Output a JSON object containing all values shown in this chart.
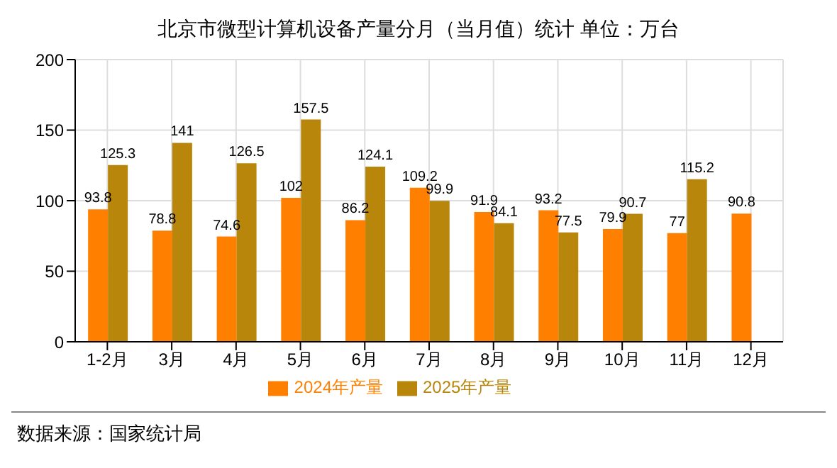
{
  "chart_data": {
    "type": "bar",
    "title": "北京市微型计算机设备产量分月（当月值）统计  单位：万台",
    "categories": [
      "1-2月",
      "3月",
      "4月",
      "5月",
      "6月",
      "7月",
      "8月",
      "9月",
      "10月",
      "11月",
      "12月"
    ],
    "series": [
      {
        "name": "2024年产量",
        "color": "#ff8000",
        "values": [
          93.8,
          78.8,
          74.6,
          102,
          86.2,
          109.2,
          91.9,
          93.2,
          79.9,
          77,
          90.8
        ]
      },
      {
        "name": "2025年产量",
        "color": "#b8860b",
        "values": [
          125.3,
          141,
          126.5,
          157.5,
          124.1,
          99.9,
          84.1,
          77.5,
          90.7,
          115.2,
          null
        ]
      }
    ],
    "ylim": [
      0,
      200
    ],
    "yticks": [
      0,
      50,
      100,
      150,
      200
    ],
    "grid": true,
    "legend": "bottom",
    "data_labels": true,
    "annotations": [
      "数据来源：国家统计局"
    ]
  }
}
